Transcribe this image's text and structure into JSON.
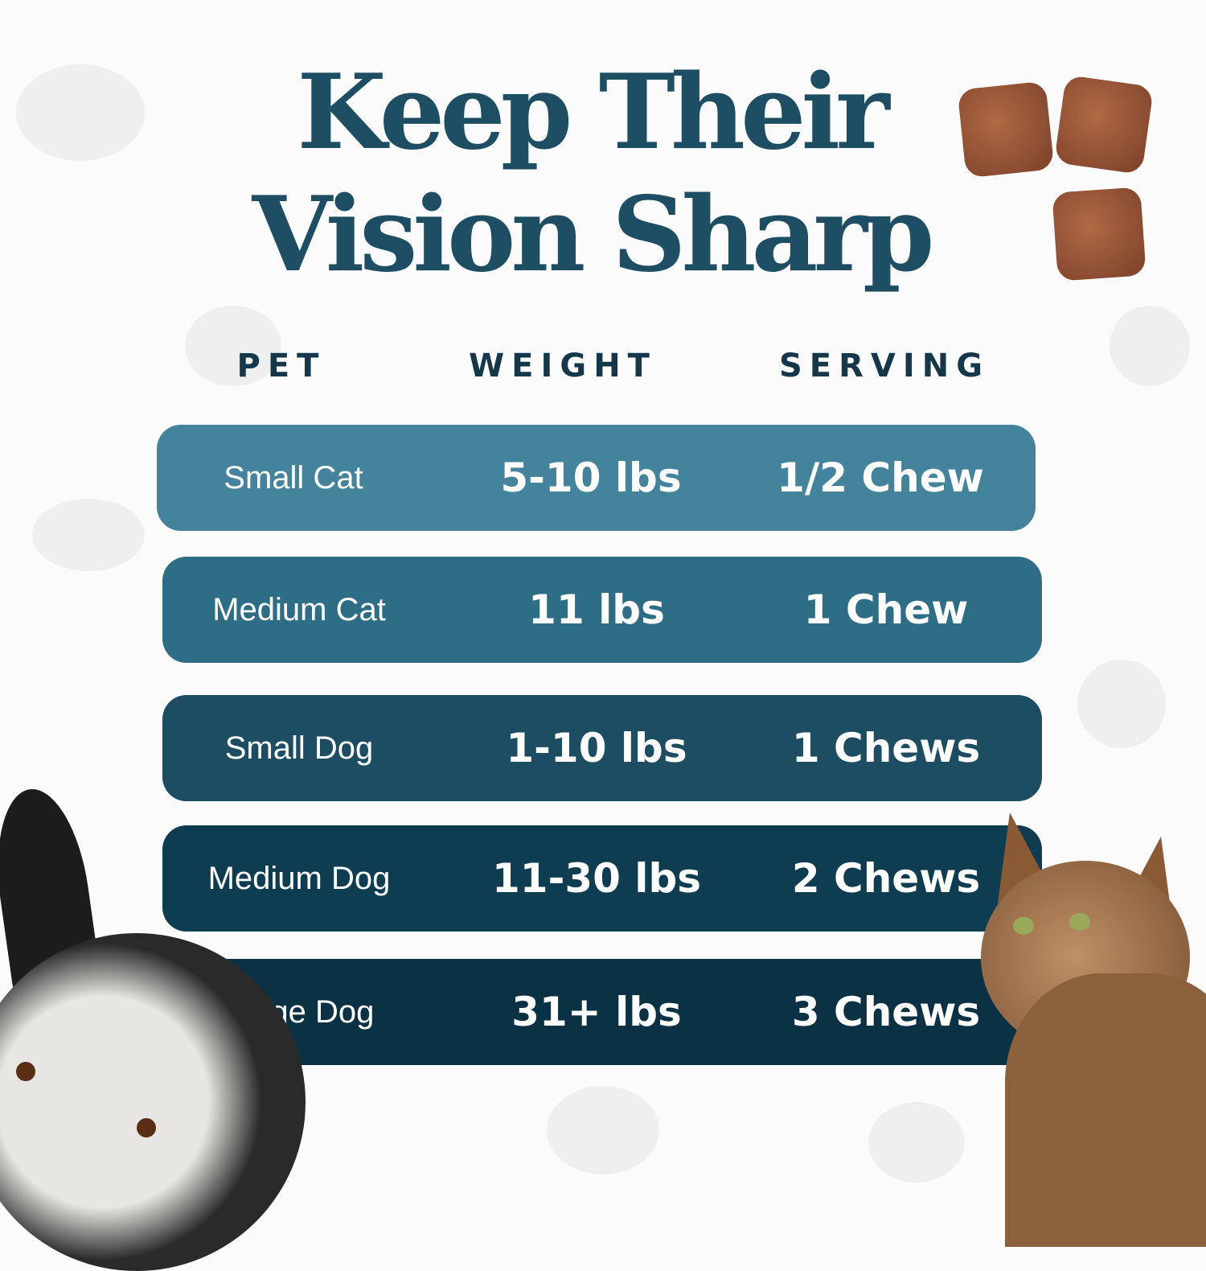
{
  "title": {
    "line1": "Keep Their",
    "line2": "Vision Sharp"
  },
  "table": {
    "headers": [
      "PET",
      "WEIGHT",
      "SERVING"
    ],
    "rows": [
      {
        "pet": "Small Cat",
        "weight": "5-10 lbs",
        "serving": "1/2 Chew",
        "color": "#43849c"
      },
      {
        "pet": "Medium Cat",
        "weight": "11 lbs",
        "serving": "1 Chew",
        "color": "#2e6d86"
      },
      {
        "pet": "Small Dog",
        "weight": "1-10  lbs",
        "serving": "1 Chews",
        "color": "#1c4d63"
      },
      {
        "pet": "Medium Dog",
        "weight": "11-30  lbs",
        "serving": "2 Chews",
        "color": "#0e3c50"
      },
      {
        "pet": "Large Dog",
        "weight": "31+  lbs",
        "serving": "3 Chews",
        "color": "#0a3244"
      }
    ]
  },
  "images": [
    "chews",
    "dog-photo",
    "cat-photo"
  ]
}
